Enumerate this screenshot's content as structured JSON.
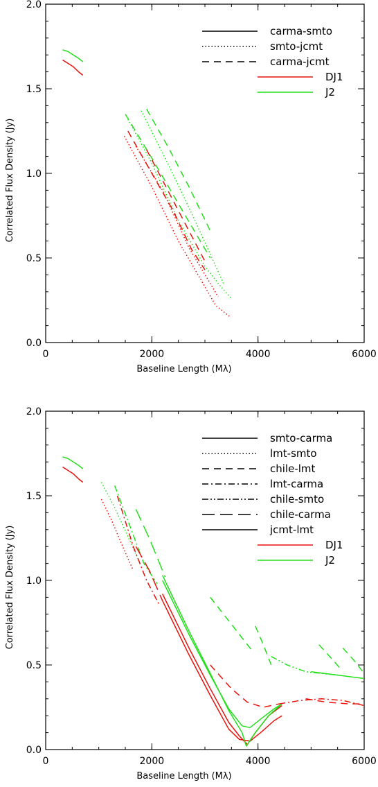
{
  "chart_data": [
    {
      "type": "line",
      "title": "",
      "xlabel": "Baseline Length (Mλ)",
      "ylabel": "Correlated Flux Density (Jy)",
      "xlim": [
        0,
        6000
      ],
      "ylim": [
        0,
        2.0
      ],
      "xticks": [
        "0",
        "2000",
        "4000",
        "6000"
      ],
      "yticks": [
        "0.0",
        "0.5",
        "1.0",
        "1.5",
        "2.0"
      ],
      "grid": false,
      "legend_position": "top-right",
      "legend_styles": [
        {
          "label": "carma-smto",
          "dash": "solid",
          "color": "#000000"
        },
        {
          "label": "smto-jcmt",
          "dash": "dotted",
          "color": "#000000"
        },
        {
          "label": "carma-jcmt",
          "dash": "dashed",
          "color": "#000000"
        }
      ],
      "legend_colors": [
        {
          "label": "DJ1",
          "color": "#e8120c"
        },
        {
          "label": "J2",
          "color": "#22e01a"
        }
      ],
      "series": [
        {
          "color": "#e8120c",
          "dash": "solid",
          "points": [
            [
              320,
              1.67
            ],
            [
              420,
              1.65
            ],
            [
              520,
              1.63
            ],
            [
              620,
              1.6
            ],
            [
              700,
              1.58
            ]
          ]
        },
        {
          "color": "#22e01a",
          "dash": "solid",
          "points": [
            [
              320,
              1.73
            ],
            [
              420,
              1.72
            ],
            [
              520,
              1.7
            ],
            [
              620,
              1.68
            ],
            [
              700,
              1.66
            ]
          ]
        },
        {
          "color": "#e8120c",
          "dash": "dotted",
          "points": [
            [
              1480,
              1.22
            ],
            [
              2000,
              0.92
            ],
            [
              2500,
              0.6
            ],
            [
              3000,
              0.33
            ],
            [
              3200,
              0.22
            ],
            [
              3480,
              0.15
            ]
          ]
        },
        {
          "color": "#22e01a",
          "dash": "dotted",
          "points": [
            [
              1550,
              1.32
            ],
            [
              2000,
              1.06
            ],
            [
              2500,
              0.72
            ],
            [
              3000,
              0.45
            ],
            [
              3300,
              0.33
            ],
            [
              3500,
              0.26
            ]
          ]
        },
        {
          "color": "#e8120c",
          "dash": "dotted",
          "points": [
            [
              1700,
              1.16
            ],
            [
              2200,
              0.9
            ],
            [
              2700,
              0.56
            ],
            [
              3250,
              0.27
            ]
          ]
        },
        {
          "color": "#22e01a",
          "dash": "dotted",
          "points": [
            [
              1800,
              1.37
            ],
            [
              2300,
              1.06
            ],
            [
              2800,
              0.73
            ],
            [
              3350,
              0.35
            ]
          ]
        },
        {
          "color": "#e8120c",
          "dash": "dashed",
          "points": [
            [
              1550,
              1.25
            ],
            [
              2000,
              1.0
            ],
            [
              2400,
              0.78
            ],
            [
              2750,
              0.55
            ],
            [
              3000,
              0.43
            ]
          ]
        },
        {
          "color": "#22e01a",
          "dash": "dashed",
          "points": [
            [
              1500,
              1.35
            ],
            [
              2000,
              1.09
            ],
            [
              2500,
              0.82
            ],
            [
              2800,
              0.66
            ],
            [
              3100,
              0.5
            ]
          ]
        },
        {
          "color": "#e8120c",
          "dash": "dashed",
          "points": [
            [
              1900,
              1.14
            ],
            [
              2300,
              0.9
            ],
            [
              2700,
              0.66
            ],
            [
              3000,
              0.48
            ]
          ]
        },
        {
          "color": "#22e01a",
          "dash": "dashed",
          "points": [
            [
              1900,
              1.38
            ],
            [
              2300,
              1.16
            ],
            [
              2700,
              0.92
            ],
            [
              3100,
              0.66
            ]
          ]
        }
      ]
    },
    {
      "type": "line",
      "title": "",
      "xlabel": "Baseline Length (Mλ)",
      "ylabel": "Correlated Flux Density (Jy)",
      "xlim": [
        0,
        6000
      ],
      "ylim": [
        0,
        2.0
      ],
      "xticks": [
        "0",
        "2000",
        "4000",
        "6000"
      ],
      "yticks": [
        "0.0",
        "0.5",
        "1.0",
        "1.5",
        "2.0"
      ],
      "grid": false,
      "legend_position": "top-right",
      "legend_styles": [
        {
          "label": "smto-carma",
          "dash": "solid",
          "color": "#000000"
        },
        {
          "label": "lmt-smto",
          "dash": "dotted",
          "color": "#000000"
        },
        {
          "label": "chile-lmt",
          "dash": "dashed",
          "color": "#000000"
        },
        {
          "label": "lmt-carma",
          "dash": "dashdot",
          "color": "#000000"
        },
        {
          "label": "chile-smto",
          "dash": "dashdotdot",
          "color": "#000000"
        },
        {
          "label": "chile-carma",
          "dash": "longdash",
          "color": "#000000"
        },
        {
          "label": "jcmt-lmt",
          "dash": "solid",
          "color": "#000000"
        }
      ],
      "legend_colors": [
        {
          "label": "DJ1",
          "color": "#e8120c"
        },
        {
          "label": "J2",
          "color": "#22e01a"
        }
      ],
      "series": [
        {
          "color": "#e8120c",
          "dash": "solid",
          "points": [
            [
              320,
              1.67
            ],
            [
              420,
              1.65
            ],
            [
              520,
              1.63
            ],
            [
              620,
              1.6
            ],
            [
              700,
              1.58
            ]
          ]
        },
        {
          "color": "#22e01a",
          "dash": "solid",
          "points": [
            [
              320,
              1.73
            ],
            [
              420,
              1.72
            ],
            [
              520,
              1.7
            ],
            [
              620,
              1.68
            ],
            [
              700,
              1.66
            ]
          ]
        },
        {
          "color": "#e8120c",
          "dash": "dotted",
          "points": [
            [
              1050,
              1.48
            ],
            [
              1250,
              1.35
            ],
            [
              1450,
              1.2
            ],
            [
              1650,
              1.06
            ]
          ]
        },
        {
          "color": "#22e01a",
          "dash": "dotted",
          "points": [
            [
              1050,
              1.58
            ],
            [
              1300,
              1.43
            ],
            [
              1550,
              1.26
            ],
            [
              1750,
              1.12
            ]
          ]
        },
        {
          "color": "#e8120c",
          "dash": "dashdot",
          "points": [
            [
              1350,
              1.5
            ],
            [
              1650,
              1.2
            ],
            [
              1900,
              1.0
            ],
            [
              2150,
              0.85
            ]
          ]
        },
        {
          "color": "#22e01a",
          "dash": "dashdot",
          "points": [
            [
              1300,
              1.56
            ],
            [
              1600,
              1.31
            ],
            [
              1850,
              1.1
            ],
            [
              2100,
              0.98
            ]
          ]
        },
        {
          "color": "#e8120c",
          "dash": "longdash",
          "points": [
            [
              1700,
              1.2
            ],
            [
              1950,
              1.06
            ],
            [
              2200,
              0.88
            ]
          ]
        },
        {
          "color": "#22e01a",
          "dash": "longdash",
          "points": [
            [
              1700,
              1.42
            ],
            [
              1950,
              1.25
            ],
            [
              2250,
              1.02
            ]
          ]
        },
        {
          "color": "#e8120c",
          "dash": "solid",
          "points": [
            [
              2200,
              0.88
            ],
            [
              2700,
              0.56
            ],
            [
              3100,
              0.32
            ],
            [
              3450,
              0.12
            ],
            [
              3650,
              0.06
            ],
            [
              3850,
              0.05
            ],
            [
              4050,
              0.1
            ],
            [
              4300,
              0.17
            ],
            [
              4450,
              0.2
            ]
          ]
        },
        {
          "color": "#e8120c",
          "dash": "solid",
          "points": [
            [
              2200,
              0.92
            ],
            [
              2700,
              0.6
            ],
            [
              3100,
              0.36
            ],
            [
              3450,
              0.16
            ],
            [
              3650,
              0.08
            ],
            [
              3800,
              0.03
            ],
            [
              3950,
              0.1
            ],
            [
              4200,
              0.2
            ],
            [
              4450,
              0.26
            ]
          ]
        },
        {
          "color": "#22e01a",
          "dash": "solid",
          "points": [
            [
              2200,
              1.0
            ],
            [
              2700,
              0.68
            ],
            [
              3100,
              0.44
            ],
            [
              3450,
              0.24
            ],
            [
              3700,
              0.14
            ],
            [
              3850,
              0.13
            ],
            [
              4050,
              0.18
            ],
            [
              4300,
              0.24
            ],
            [
              4450,
              0.27
            ]
          ]
        },
        {
          "color": "#22e01a",
          "dash": "solid",
          "points": [
            [
              2200,
              1.03
            ],
            [
              2700,
              0.7
            ],
            [
              3100,
              0.45
            ],
            [
              3450,
              0.23
            ],
            [
              3700,
              0.1
            ],
            [
              3780,
              0.02
            ],
            [
              3950,
              0.1
            ],
            [
              4200,
              0.2
            ],
            [
              4450,
              0.27
            ]
          ]
        },
        {
          "color": "#e8120c",
          "dash": "dashed",
          "points": [
            [
              3100,
              0.5
            ],
            [
              3500,
              0.36
            ],
            [
              3800,
              0.28
            ],
            [
              4100,
              0.25
            ],
            [
              4400,
              0.27
            ]
          ]
        },
        {
          "color": "#22e01a",
          "dash": "dashed",
          "points": [
            [
              3100,
              0.9
            ],
            [
              3400,
              0.78
            ],
            [
              3700,
              0.66
            ],
            [
              3900,
              0.58
            ]
          ]
        },
        {
          "color": "#22e01a",
          "dash": "dashed",
          "points": [
            [
              3950,
              0.73
            ],
            [
              4100,
              0.62
            ],
            [
              4250,
              0.5
            ]
          ]
        },
        {
          "color": "#22e01a",
          "dash": "dashdotdot",
          "points": [
            [
              4250,
              0.55
            ],
            [
              4550,
              0.5
            ],
            [
              4900,
              0.46
            ],
            [
              5200,
              0.45
            ],
            [
              5500,
              0.44
            ]
          ]
        },
        {
          "color": "#22e01a",
          "dash": "dashed",
          "points": [
            [
              5150,
              0.62
            ],
            [
              5350,
              0.55
            ],
            [
              5550,
              0.48
            ]
          ]
        },
        {
          "color": "#22e01a",
          "dash": "dashed",
          "points": [
            [
              5600,
              0.6
            ],
            [
              5800,
              0.53
            ],
            [
              6000,
              0.45
            ]
          ]
        },
        {
          "color": "#22e01a",
          "dash": "solid",
          "points": [
            [
              5000,
              0.46
            ],
            [
              5500,
              0.44
            ],
            [
              6000,
              0.42
            ]
          ]
        },
        {
          "color": "#e8120c",
          "dash": "dashdot",
          "points": [
            [
              4400,
              0.27
            ],
            [
              4800,
              0.29
            ],
            [
              5200,
              0.3
            ],
            [
              5600,
              0.29
            ],
            [
              6000,
              0.26
            ]
          ]
        },
        {
          "color": "#e8120c",
          "dash": "dashed",
          "points": [
            [
              4900,
              0.3
            ],
            [
              5300,
              0.28
            ],
            [
              5700,
              0.27
            ],
            [
              6000,
              0.27
            ]
          ]
        }
      ]
    }
  ]
}
